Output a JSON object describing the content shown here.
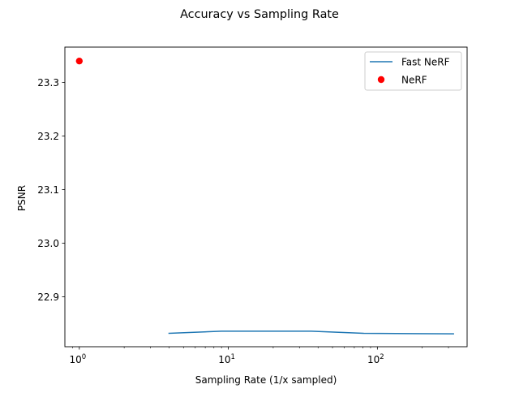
{
  "chart_data": {
    "type": "line",
    "title": "Accuracy vs Sampling Rate",
    "xlabel": "Sampling Rate (1/x sampled)",
    "ylabel": "PSNR",
    "xscale": "log",
    "xlim": [
      0.8,
      400
    ],
    "ylim": [
      22.807,
      23.366
    ],
    "x_ticks": [
      {
        "value": 1,
        "base": "10",
        "exp": "0"
      },
      {
        "value": 10,
        "base": "10",
        "exp": "1"
      },
      {
        "value": 100,
        "base": "10",
        "exp": "2"
      }
    ],
    "y_ticks": [
      {
        "value": 22.9,
        "label": "22.9"
      },
      {
        "value": 23.0,
        "label": "23.0"
      },
      {
        "value": 23.1,
        "label": "23.1"
      },
      {
        "value": 23.2,
        "label": "23.2"
      },
      {
        "value": 23.3,
        "label": "23.3"
      }
    ],
    "grid": false,
    "legend_position": "top-right",
    "series": [
      {
        "name": "Fast NeRF",
        "kind": "line",
        "color": "#1f77b4",
        "x": [
          4,
          9,
          36,
          81,
          324
        ],
        "y": [
          22.832,
          22.836,
          22.836,
          22.832,
          22.831
        ]
      },
      {
        "name": "NeRF",
        "kind": "scatter",
        "color": "#ff0000",
        "x": [
          1
        ],
        "y": [
          23.34
        ]
      }
    ]
  }
}
